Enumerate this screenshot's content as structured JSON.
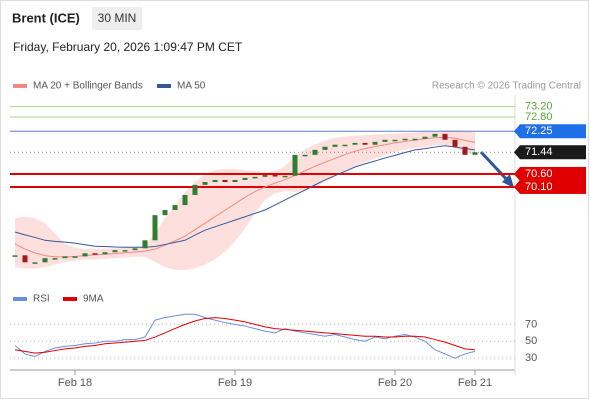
{
  "chart_data": {
    "type": "candlestick",
    "title": "Brent (ICE)",
    "timeframe": "30 MIN",
    "subtitle": "Friday, February 20, 2026 1:09:47 PM CET",
    "credit": "Research © 2026 Trading Central",
    "categories": [
      null,
      null,
      null,
      null,
      null,
      null,
      "Feb 18",
      null,
      null,
      null,
      null,
      null,
      null,
      null,
      null,
      null,
      null,
      null,
      null,
      null,
      null,
      null,
      "Feb 19",
      null,
      null,
      null,
      null,
      null,
      null,
      null,
      null,
      null,
      null,
      null,
      null,
      null,
      null,
      null,
      "Feb 20",
      null,
      null,
      null,
      null,
      null,
      null,
      null,
      "Feb 21"
    ],
    "close": [
      67.46,
      67.19,
      67.19,
      67.35,
      67.35,
      67.42,
      67.42,
      67.54,
      67.5,
      67.58,
      67.66,
      67.66,
      67.73,
      68.04,
      69.01,
      69.21,
      69.4,
      69.79,
      70.18,
      70.29,
      70.37,
      70.29,
      70.37,
      70.45,
      70.49,
      70.56,
      70.53,
      70.53,
      71.34,
      71.34,
      71.53,
      71.65,
      71.73,
      71.73,
      71.8,
      71.73,
      71.84,
      71.92,
      71.92,
      71.96,
      71.96,
      72.04,
      72.15,
      71.92,
      71.65,
      71.34,
      71.44
    ],
    "up_color": "#2e7d32",
    "down_color": "#a11a1a",
    "ylim": [
      66.7,
      73.65
    ],
    "series": [
      {
        "name": "MA 20 + Bollinger Bands",
        "color": "#f08a80",
        "band_color": "#fde0de",
        "values": [
          67.9,
          67.7,
          67.55,
          67.45,
          67.4,
          67.4,
          67.42,
          67.45,
          67.48,
          67.5,
          67.53,
          67.56,
          67.59,
          67.62,
          67.7,
          67.85,
          68.02,
          68.2,
          68.45,
          68.7,
          68.95,
          69.2,
          69.45,
          69.7,
          69.92,
          70.1,
          70.25,
          70.38,
          70.55,
          70.72,
          70.9,
          71.05,
          71.2,
          71.35,
          71.48,
          71.58,
          71.66,
          71.73,
          71.8,
          71.86,
          71.91,
          71.96,
          72.0,
          72.02,
          71.98,
          71.9,
          71.82
        ],
        "upper": [
          68.9,
          68.95,
          68.9,
          68.7,
          68.3,
          67.9,
          67.75,
          67.7,
          67.72,
          67.72,
          67.73,
          67.75,
          67.78,
          67.85,
          68.3,
          68.9,
          69.4,
          69.9,
          70.3,
          70.6,
          70.75,
          70.8,
          70.8,
          70.75,
          70.7,
          70.68,
          70.7,
          70.9,
          71.3,
          71.55,
          71.75,
          71.9,
          72.0,
          72.05,
          72.08,
          72.1,
          72.12,
          72.14,
          72.16,
          72.18,
          72.2,
          72.22,
          72.25,
          72.3,
          72.3,
          72.28,
          72.25
        ],
        "lower": [
          67.0,
          66.95,
          66.95,
          67.0,
          67.1,
          67.2,
          67.25,
          67.3,
          67.3,
          67.32,
          67.35,
          67.38,
          67.4,
          67.4,
          67.2,
          67.0,
          66.9,
          66.9,
          66.95,
          67.1,
          67.3,
          67.6,
          68.0,
          68.5,
          69.1,
          69.6,
          69.85,
          69.95,
          69.9,
          69.95,
          70.1,
          70.3,
          70.5,
          70.7,
          70.9,
          71.05,
          71.2,
          71.32,
          71.45,
          71.55,
          71.6,
          71.65,
          71.7,
          71.72,
          71.6,
          71.45,
          71.35
        ]
      },
      {
        "name": "MA 50",
        "color": "#34589a",
        "values": [
          68.36,
          68.25,
          68.15,
          68.04,
          68.0,
          67.97,
          67.93,
          67.87,
          67.81,
          67.8,
          67.78,
          67.77,
          67.77,
          67.77,
          67.8,
          67.88,
          67.96,
          68.04,
          68.24,
          68.43,
          68.56,
          68.69,
          68.82,
          68.95,
          69.08,
          69.21,
          69.4,
          69.6,
          69.79,
          69.98,
          70.18,
          70.37,
          70.54,
          70.7,
          70.87,
          70.99,
          71.1,
          71.22,
          71.32,
          71.43,
          71.53,
          71.58,
          71.64,
          71.69,
          71.64,
          71.58,
          71.53
        ]
      }
    ],
    "levels": [
      {
        "value": 73.2,
        "label": "73.20",
        "color": "#a5d48a",
        "style": "plain",
        "text_color": "#5aa832"
      },
      {
        "value": 72.8,
        "label": "72.80",
        "color": "#a5d48a",
        "style": "plain",
        "text_color": "#5aa832"
      },
      {
        "value": 72.25,
        "label": "72.25",
        "color": "#5b7fd6",
        "style": "box",
        "text_color": "#ffffff",
        "box_color": "#1f6fe8"
      },
      {
        "value": 71.44,
        "label": "71.44",
        "color": "#888888",
        "style": "dotted",
        "text_color": "#ffffff",
        "box_color": "#1a1a1a"
      },
      {
        "value": 70.6,
        "label": "70.60",
        "color": "#e00000",
        "style": "box",
        "text_color": "#ffffff",
        "box_color": "#e00000"
      },
      {
        "value": 70.1,
        "label": "70.10",
        "color": "#e00000",
        "style": "box",
        "text_color": "#ffffff",
        "box_color": "#e00000"
      }
    ],
    "rsi": {
      "ylim": [
        16,
        87
      ],
      "yticks": [
        70,
        50,
        30
      ],
      "series": [
        {
          "name": "RSI",
          "color": "#6a8ee0",
          "values": [
            45,
            35,
            32,
            38,
            42,
            44,
            45,
            47,
            48,
            50,
            50,
            52,
            52,
            55,
            75,
            78,
            80,
            82,
            82,
            78,
            75,
            72,
            70,
            68,
            65,
            62,
            60,
            65,
            62,
            60,
            58,
            56,
            58,
            55,
            52,
            50,
            55,
            53,
            56,
            58,
            55,
            50,
            40,
            35,
            30,
            35,
            38
          ]
        },
        {
          "name": "9MA",
          "color": "#e00000",
          "values": [
            40,
            38,
            36,
            37,
            39,
            41,
            42,
            44,
            45,
            47,
            48,
            49,
            50,
            51,
            55,
            60,
            65,
            70,
            74,
            77,
            78,
            77,
            75,
            73,
            70,
            67,
            65,
            64,
            63,
            62,
            61,
            60,
            59,
            58,
            57,
            56,
            56,
            55,
            55,
            56,
            56,
            55,
            52,
            49,
            45,
            41,
            40
          ]
        }
      ]
    }
  }
}
